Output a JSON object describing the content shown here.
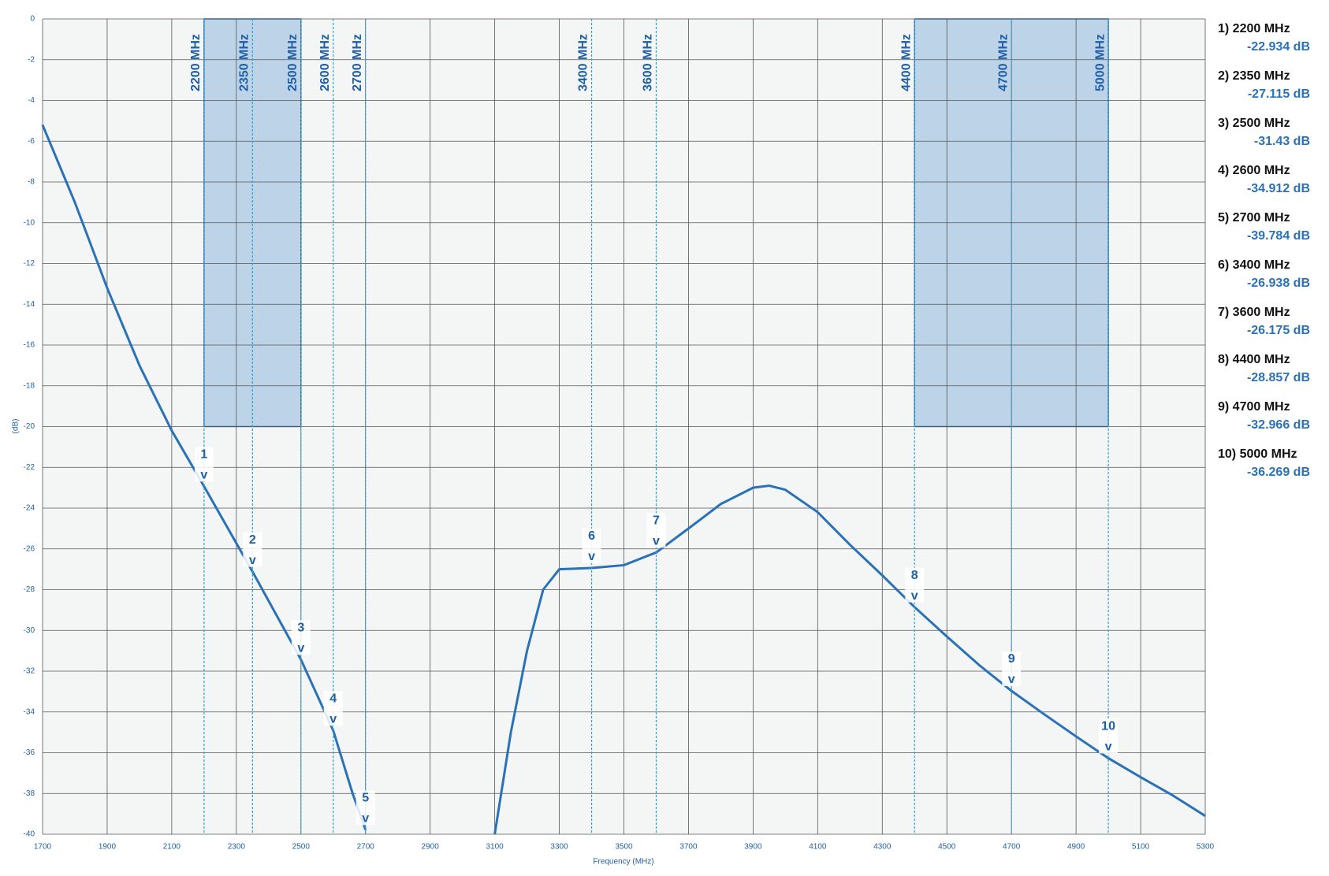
{
  "chart_data": {
    "type": "line",
    "x_label": "Frequency (MHz)",
    "y_label": "(dB)",
    "xlim": [
      1700,
      5300
    ],
    "xticks": [
      1700,
      1900,
      2100,
      2300,
      2500,
      2700,
      2900,
      3100,
      3300,
      3500,
      3700,
      3900,
      4100,
      4300,
      4500,
      4700,
      4900,
      5100,
      5300
    ],
    "ylim": [
      -40,
      0
    ],
    "yticks": [
      0,
      -2,
      -4,
      -6,
      -8,
      -10,
      -12,
      -14,
      -16,
      -18,
      -20,
      -22,
      -24,
      -26,
      -28,
      -30,
      -32,
      -34,
      -36,
      -38,
      -40
    ],
    "grid": true,
    "series": [
      {
        "color": "#2a72b8",
        "x": [
          1700,
          1800,
          1900,
          2000,
          2100,
          2200,
          2350,
          2500,
          2600,
          2660,
          2700,
          null,
          3100,
          3150,
          3200,
          3250,
          3300,
          3400,
          3500,
          3600,
          3700,
          3800,
          3900,
          3950,
          4000,
          4100,
          4200,
          4300,
          4400,
          4500,
          4600,
          4700,
          4800,
          4900,
          5000,
          5100,
          5200,
          5300
        ],
        "values": [
          -5.2,
          -9,
          -13.2,
          -17,
          -20.2,
          -22.934,
          -27.115,
          -31.43,
          -34.912,
          -38,
          -39.784,
          null,
          -40,
          -35,
          -31,
          -28,
          -27,
          -26.938,
          -26.8,
          -26.175,
          -25,
          -23.8,
          -23,
          -22.9,
          -23.1,
          -24.2,
          -25.8,
          -27.3,
          -28.857,
          -30.3,
          -31.7,
          -32.966,
          -34.1,
          -35.2,
          -36.269,
          -37.2,
          -38.1,
          -39.1
        ]
      }
    ],
    "masks": [
      {
        "x0": 2200,
        "x1": 2500,
        "top": 0,
        "bottom": -20
      },
      {
        "x0": 4400,
        "x1": 5000,
        "top": 0,
        "bottom": -20
      }
    ],
    "markers": [
      {
        "label": "1",
        "x": 2200,
        "freq": "2200 MHz",
        "legend": "1) 2200 MHz",
        "value": -22.934,
        "value_label": "-22.934 dB"
      },
      {
        "label": "2",
        "x": 2350,
        "freq": "2350 MHz",
        "legend": "2) 2350 MHz",
        "value": -27.115,
        "value_label": "-27.115 dB"
      },
      {
        "label": "3",
        "x": 2500,
        "freq": "2500 MHz",
        "legend": "3) 2500 MHz",
        "value": -31.43,
        "value_label": "-31.43 dB"
      },
      {
        "label": "4",
        "x": 2600,
        "freq": "2600 MHz",
        "legend": "4) 2600 MHz",
        "value": -34.912,
        "value_label": "-34.912 dB"
      },
      {
        "label": "5",
        "x": 2700,
        "freq": "2700 MHz",
        "legend": "5) 2700 MHz",
        "value": -39.784,
        "value_label": "-39.784 dB"
      },
      {
        "label": "6",
        "x": 3400,
        "freq": "3400 MHz",
        "legend": "6) 3400 MHz",
        "value": -26.938,
        "value_label": "-26.938 dB"
      },
      {
        "label": "7",
        "x": 3600,
        "freq": "3600 MHz",
        "legend": "7) 3600 MHz",
        "value": -26.175,
        "value_label": "-26.175 dB"
      },
      {
        "label": "8",
        "x": 4400,
        "freq": "4400 MHz",
        "legend": "8) 4400 MHz",
        "value": -28.857,
        "value_label": "-28.857 dB"
      },
      {
        "label": "9",
        "x": 4700,
        "freq": "4700 MHz",
        "legend": "9) 4700 MHz",
        "value": -32.966,
        "value_label": "-32.966 dB"
      },
      {
        "label": "10",
        "x": 5000,
        "freq": "5000 MHz",
        "legend": "10) 5000 MHz",
        "value": -36.269,
        "value_label": "-36.269 dB"
      }
    ]
  }
}
